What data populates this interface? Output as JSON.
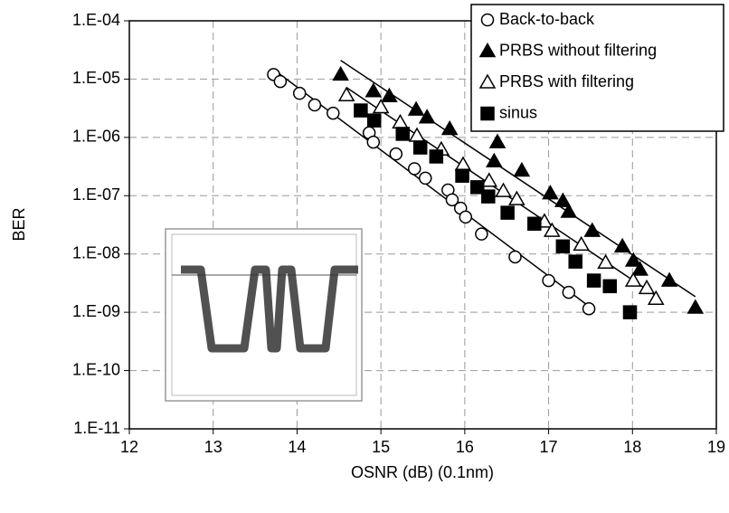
{
  "chart_data": {
    "type": "scatter",
    "xlabel": "OSNR (dB) (0.1nm)",
    "ylabel": "BER",
    "xlim": [
      12,
      19
    ],
    "xticks": [
      12,
      13,
      14,
      15,
      16,
      17,
      18,
      19
    ],
    "ylim": [
      1e-11,
      0.0001
    ],
    "yscale": "log",
    "yticks": [
      {
        "value": 1e-11,
        "label": "1.E-11"
      },
      {
        "value": 1e-10,
        "label": "1.E-10"
      },
      {
        "value": 1e-09,
        "label": "1.E-09"
      },
      {
        "value": 1e-08,
        "label": "1.E-08"
      },
      {
        "value": 1e-07,
        "label": "1.E-07"
      },
      {
        "value": 1e-06,
        "label": "1.E-06"
      },
      {
        "value": 1e-05,
        "label": "1.E-05"
      },
      {
        "value": 0.0001,
        "label": "1.E-04"
      }
    ],
    "grid": true,
    "legend": "top-right",
    "series": [
      {
        "name": "Back-to-back",
        "color": "#000000",
        "marker": "circle",
        "filled": false,
        "trendline": true,
        "x": [
          13.72,
          13.8,
          14.03,
          14.21,
          14.43,
          14.86,
          14.91,
          15.18,
          15.4,
          15.53,
          15.8,
          15.85,
          15.95,
          16.01,
          16.2,
          16.6,
          17.0,
          17.24,
          17.48
        ],
        "values": [
          1.2e-05,
          9.1e-06,
          5.7e-06,
          3.6e-06,
          2.6e-06,
          1.2e-06,
          8.3e-07,
          5.2e-07,
          2.9e-07,
          2e-07,
          1.25e-07,
          8.5e-08,
          6.1e-08,
          4.3e-08,
          2.2e-08,
          8.9e-09,
          3.5e-09,
          2.2e-09,
          1.15e-09
        ]
      },
      {
        "name": "PRBS without filtering",
        "color": "#000000",
        "marker": "triangle",
        "filled": true,
        "trendline": true,
        "x": [
          14.52,
          14.91,
          15.1,
          15.42,
          15.55,
          15.82,
          16.39,
          16.35,
          16.68,
          17.02,
          17.17,
          17.24,
          17.52,
          17.88,
          18.01,
          18.09,
          18.44,
          18.75
        ],
        "values": [
          1.2e-05,
          6.2e-06,
          5.1e-06,
          3e-06,
          2.2e-06,
          1.4e-06,
          8.3e-07,
          3.9e-07,
          2.7e-07,
          1.1e-07,
          8.1e-08,
          5.3e-08,
          2.5e-08,
          1.35e-08,
          7.7e-09,
          5.4e-09,
          3.5e-09,
          1.2e-09
        ]
      },
      {
        "name": "PRBS with filtering",
        "color": "#000000",
        "marker": "triangle",
        "filled": false,
        "trendline": true,
        "x": [
          14.59,
          15.0,
          15.23,
          15.43,
          15.72,
          15.98,
          16.29,
          16.46,
          16.62,
          16.95,
          17.04,
          17.39,
          17.68,
          18.01,
          18.17,
          18.28
        ],
        "values": [
          5.3e-06,
          3.3e-06,
          1.8e-06,
          1.07e-06,
          6.2e-07,
          3.4e-07,
          1.8e-07,
          1.2e-07,
          8.7e-08,
          3.6e-08,
          2.5e-08,
          1.45e-08,
          7.1e-09,
          3.5e-09,
          2.6e-09,
          1.7e-09
        ]
      },
      {
        "name": "sinus",
        "color": "#000000",
        "marker": "square",
        "filled": true,
        "trendline": false,
        "x": [
          14.76,
          14.92,
          15.26,
          15.47,
          15.66,
          15.97,
          16.15,
          16.28,
          16.51,
          16.83,
          17.17,
          17.32,
          17.54,
          17.73,
          17.97
        ],
        "values": [
          2.9e-06,
          1.95e-06,
          1.15e-06,
          6.7e-07,
          4.7e-07,
          2.2e-07,
          1.4e-07,
          9.7e-08,
          5.1e-08,
          3.3e-08,
          1.35e-08,
          7.4e-09,
          3.5e-09,
          2.8e-09,
          1e-09
        ]
      }
    ]
  }
}
